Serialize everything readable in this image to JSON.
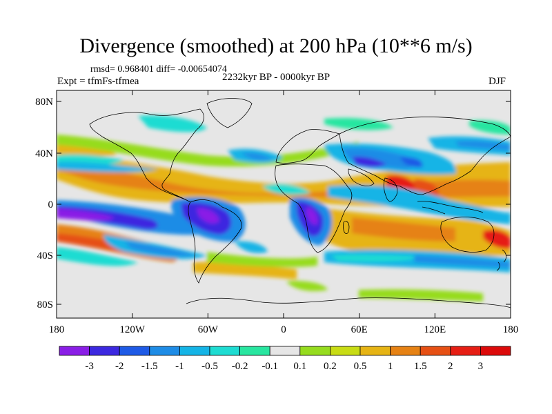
{
  "title": "Divergence (smoothed) at 200 hPa (10**6 m/s)",
  "stats_line": "rmsd= 0.968401 diff= -0.00654074",
  "experiment_line": "Expt = tfmFs-tfmea",
  "period_line": "2232kyr BP - 0000kyr BP",
  "season": "DJF",
  "lat_labels": [
    "80N",
    "40N",
    "0",
    "40S",
    "80S"
  ],
  "lon_labels": [
    "180",
    "120W",
    "60W",
    "0",
    "60E",
    "120E",
    "180"
  ],
  "colorbar": {
    "labels": [
      "-3",
      "-2",
      "-1.5",
      "-1",
      "-0.5",
      "-0.2",
      "-0.1",
      "0.1",
      "0.2",
      "0.5",
      "1",
      "1.5",
      "2",
      "3"
    ],
    "colors": [
      "#8a1ee6",
      "#3c28e0",
      "#1e5ae6",
      "#1e8ce6",
      "#14b4e6",
      "#1edcd2",
      "#28e6a0",
      "#e6e6e6",
      "#96dc1e",
      "#c8dc14",
      "#e6b414",
      "#e68214",
      "#e65014",
      "#e61e14",
      "#dc0a0a"
    ]
  }
}
